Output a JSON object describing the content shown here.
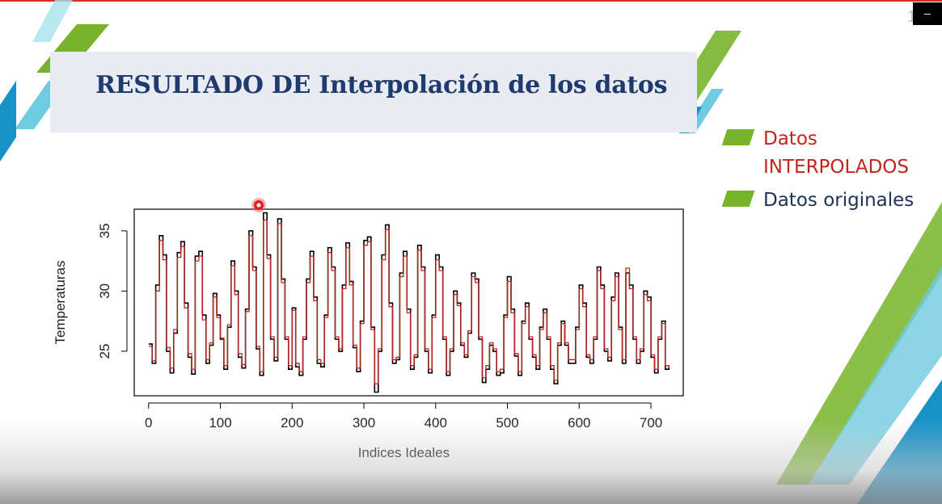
{
  "slide": {
    "title": "RESULTADO DE Interpolación de los datos",
    "page_number": "15",
    "window_button": "–"
  },
  "legend": {
    "items": [
      {
        "label": "Datos INTERPOLADOS",
        "label_line1": "Datos",
        "label_line2": "INTERPOLADOS",
        "color": "#c0261e"
      },
      {
        "label": "Datos originales",
        "color": "#1f3255"
      }
    ],
    "swatch_color": "#78b42a"
  },
  "chart_data": {
    "type": "line",
    "xlabel": "Indices Ideales",
    "ylabel": "Temperaturas",
    "xlim": [
      -20,
      745
    ],
    "ylim": [
      21.3,
      36.8
    ],
    "xticks": [
      0,
      100,
      200,
      300,
      400,
      500,
      600,
      700
    ],
    "yticks": [
      25,
      30,
      35
    ],
    "grid": false,
    "series": [
      {
        "name": "Datos originales",
        "color": "#000000",
        "points": [
          [
            0,
            25.6
          ],
          [
            5,
            24.0
          ],
          [
            10,
            30.5
          ],
          [
            15,
            34.6
          ],
          [
            20,
            33.0
          ],
          [
            25,
            25.0
          ],
          [
            30,
            23.2
          ],
          [
            35,
            26.5
          ],
          [
            40,
            33.2
          ],
          [
            45,
            34.1
          ],
          [
            50,
            29.0
          ],
          [
            55,
            24.5
          ],
          [
            60,
            23.1
          ],
          [
            65,
            32.9
          ],
          [
            70,
            33.3
          ],
          [
            75,
            28.0
          ],
          [
            80,
            24.0
          ],
          [
            85,
            25.5
          ],
          [
            90,
            29.8
          ],
          [
            95,
            28.0
          ],
          [
            100,
            26.0
          ],
          [
            105,
            23.5
          ],
          [
            110,
            27.0
          ],
          [
            115,
            32.5
          ],
          [
            120,
            30.0
          ],
          [
            125,
            24.5
          ],
          [
            130,
            23.6
          ],
          [
            135,
            28.5
          ],
          [
            140,
            35.0
          ],
          [
            145,
            32.0
          ],
          [
            150,
            25.2
          ],
          [
            155,
            23.0
          ],
          [
            160,
            36.5
          ],
          [
            165,
            33.0
          ],
          [
            170,
            26.0
          ],
          [
            175,
            24.2
          ],
          [
            180,
            36.0
          ],
          [
            185,
            31.0
          ],
          [
            190,
            26.0
          ],
          [
            195,
            23.5
          ],
          [
            200,
            28.6
          ],
          [
            205,
            23.7
          ],
          [
            210,
            23.0
          ],
          [
            215,
            26.0
          ],
          [
            220,
            31.0
          ],
          [
            225,
            33.3
          ],
          [
            230,
            29.5
          ],
          [
            235,
            24.0
          ],
          [
            240,
            23.7
          ],
          [
            245,
            28.0
          ],
          [
            250,
            33.6
          ],
          [
            255,
            32.0
          ],
          [
            260,
            26.0
          ],
          [
            265,
            25.0
          ],
          [
            270,
            30.5
          ],
          [
            275,
            34.0
          ],
          [
            280,
            30.8
          ],
          [
            285,
            25.3
          ],
          [
            290,
            23.3
          ],
          [
            295,
            27.5
          ],
          [
            300,
            34.2
          ],
          [
            305,
            34.5
          ],
          [
            310,
            27.0
          ],
          [
            315,
            21.6
          ],
          [
            320,
            25.0
          ],
          [
            325,
            33.0
          ],
          [
            330,
            35.5
          ],
          [
            335,
            29.0
          ],
          [
            340,
            24.0
          ],
          [
            345,
            24.3
          ],
          [
            350,
            31.5
          ],
          [
            355,
            33.3
          ],
          [
            360,
            28.5
          ],
          [
            365,
            23.5
          ],
          [
            370,
            24.5
          ],
          [
            375,
            33.8
          ],
          [
            380,
            32.0
          ],
          [
            385,
            25.0
          ],
          [
            390,
            23.2
          ],
          [
            395,
            28.0
          ],
          [
            400,
            33.0
          ],
          [
            405,
            32.0
          ],
          [
            410,
            26.0
          ],
          [
            415,
            23.0
          ],
          [
            420,
            25.0
          ],
          [
            425,
            30.0
          ],
          [
            430,
            29.0
          ],
          [
            435,
            25.5
          ],
          [
            440,
            24.5
          ],
          [
            445,
            26.5
          ],
          [
            450,
            31.5
          ],
          [
            455,
            31.0
          ],
          [
            460,
            26.0
          ],
          [
            465,
            22.4
          ],
          [
            470,
            23.5
          ],
          [
            475,
            25.5
          ],
          [
            480,
            25.0
          ],
          [
            485,
            23.0
          ],
          [
            490,
            23.2
          ],
          [
            495,
            28.0
          ],
          [
            500,
            31.2
          ],
          [
            505,
            28.5
          ],
          [
            510,
            24.6
          ],
          [
            515,
            23.0
          ],
          [
            520,
            27.5
          ],
          [
            525,
            29.0
          ],
          [
            530,
            26.0
          ],
          [
            535,
            24.5
          ],
          [
            540,
            23.5
          ],
          [
            545,
            27.0
          ],
          [
            550,
            28.5
          ],
          [
            555,
            26.0
          ],
          [
            560,
            23.5
          ],
          [
            565,
            22.3
          ],
          [
            570,
            25.5
          ],
          [
            575,
            27.5
          ],
          [
            580,
            25.5
          ],
          [
            585,
            24.0
          ],
          [
            590,
            24.0
          ],
          [
            595,
            27.0
          ],
          [
            600,
            30.5
          ],
          [
            605,
            29.0
          ],
          [
            610,
            24.5
          ],
          [
            615,
            24.0
          ],
          [
            620,
            26.0
          ],
          [
            625,
            32.0
          ],
          [
            630,
            30.5
          ],
          [
            635,
            25.0
          ],
          [
            640,
            24.2
          ],
          [
            645,
            29.5
          ],
          [
            650,
            31.5
          ],
          [
            655,
            27.0
          ],
          [
            660,
            24.0
          ],
          [
            665,
            31.5
          ],
          [
            670,
            30.5
          ],
          [
            675,
            26.0
          ],
          [
            680,
            24.0
          ],
          [
            685,
            25.0
          ],
          [
            690,
            30.0
          ],
          [
            695,
            29.5
          ],
          [
            700,
            24.5
          ],
          [
            705,
            23.2
          ],
          [
            710,
            26.0
          ],
          [
            715,
            27.5
          ],
          [
            720,
            23.5
          ],
          [
            725,
            23.8
          ]
        ]
      },
      {
        "name": "Datos INTERPOLADOS",
        "color": "#c0261e",
        "points": [
          [
            0,
            25.4
          ],
          [
            5,
            24.2
          ],
          [
            10,
            30.0
          ],
          [
            15,
            34.2
          ],
          [
            20,
            32.6
          ],
          [
            25,
            25.3
          ],
          [
            30,
            23.6
          ],
          [
            35,
            26.8
          ],
          [
            40,
            32.8
          ],
          [
            45,
            33.7
          ],
          [
            50,
            28.6
          ],
          [
            55,
            24.8
          ],
          [
            60,
            23.5
          ],
          [
            65,
            32.5
          ],
          [
            70,
            32.9
          ],
          [
            75,
            27.6
          ],
          [
            80,
            24.3
          ],
          [
            85,
            25.7
          ],
          [
            90,
            29.5
          ],
          [
            95,
            27.8
          ],
          [
            100,
            26.1
          ],
          [
            105,
            23.8
          ],
          [
            110,
            27.2
          ],
          [
            115,
            32.1
          ],
          [
            120,
            29.7
          ],
          [
            125,
            24.8
          ],
          [
            130,
            23.9
          ],
          [
            135,
            28.3
          ],
          [
            140,
            34.6
          ],
          [
            145,
            31.7
          ],
          [
            150,
            25.4
          ],
          [
            155,
            23.3
          ],
          [
            160,
            35.9
          ],
          [
            165,
            32.7
          ],
          [
            170,
            26.2
          ],
          [
            175,
            24.5
          ],
          [
            180,
            35.6
          ],
          [
            185,
            30.7
          ],
          [
            190,
            26.2
          ],
          [
            195,
            23.8
          ],
          [
            200,
            28.4
          ],
          [
            205,
            24.0
          ],
          [
            210,
            23.3
          ],
          [
            215,
            26.2
          ],
          [
            220,
            30.7
          ],
          [
            225,
            32.9
          ],
          [
            230,
            29.2
          ],
          [
            235,
            24.3
          ],
          [
            240,
            24.0
          ],
          [
            245,
            27.8
          ],
          [
            250,
            33.2
          ],
          [
            255,
            31.7
          ],
          [
            260,
            26.2
          ],
          [
            265,
            25.2
          ],
          [
            270,
            30.2
          ],
          [
            275,
            33.6
          ],
          [
            280,
            30.5
          ],
          [
            285,
            25.5
          ],
          [
            290,
            23.6
          ],
          [
            295,
            27.3
          ],
          [
            300,
            33.8
          ],
          [
            305,
            34.1
          ],
          [
            310,
            26.8
          ],
          [
            315,
            22.3
          ],
          [
            320,
            25.2
          ],
          [
            325,
            32.6
          ],
          [
            330,
            35.1
          ],
          [
            335,
            28.7
          ],
          [
            340,
            24.3
          ],
          [
            345,
            24.5
          ],
          [
            350,
            31.2
          ],
          [
            355,
            32.9
          ],
          [
            360,
            28.2
          ],
          [
            365,
            23.8
          ],
          [
            370,
            24.7
          ],
          [
            375,
            33.4
          ],
          [
            380,
            31.7
          ],
          [
            385,
            25.2
          ],
          [
            390,
            23.5
          ],
          [
            395,
            27.8
          ],
          [
            400,
            32.6
          ],
          [
            405,
            31.7
          ],
          [
            410,
            26.2
          ],
          [
            415,
            23.3
          ],
          [
            420,
            25.2
          ],
          [
            425,
            29.7
          ],
          [
            430,
            28.8
          ],
          [
            435,
            25.7
          ],
          [
            440,
            24.7
          ],
          [
            445,
            26.7
          ],
          [
            450,
            31.2
          ],
          [
            455,
            30.7
          ],
          [
            460,
            26.2
          ],
          [
            465,
            22.8
          ],
          [
            470,
            23.8
          ],
          [
            475,
            25.7
          ],
          [
            480,
            25.2
          ],
          [
            485,
            23.3
          ],
          [
            490,
            23.5
          ],
          [
            495,
            27.8
          ],
          [
            500,
            30.8
          ],
          [
            505,
            28.2
          ],
          [
            510,
            24.8
          ],
          [
            515,
            23.3
          ],
          [
            520,
            27.3
          ],
          [
            525,
            28.7
          ],
          [
            530,
            26.2
          ],
          [
            535,
            24.7
          ],
          [
            540,
            23.8
          ],
          [
            545,
            26.8
          ],
          [
            550,
            28.2
          ],
          [
            555,
            26.2
          ],
          [
            560,
            23.8
          ],
          [
            565,
            22.6
          ],
          [
            570,
            25.7
          ],
          [
            575,
            27.3
          ],
          [
            580,
            25.7
          ],
          [
            585,
            24.3
          ],
          [
            590,
            24.3
          ],
          [
            595,
            26.8
          ],
          [
            600,
            30.2
          ],
          [
            605,
            28.7
          ],
          [
            610,
            24.7
          ],
          [
            615,
            24.3
          ],
          [
            620,
            26.2
          ],
          [
            625,
            31.7
          ],
          [
            630,
            30.2
          ],
          [
            635,
            25.2
          ],
          [
            640,
            24.5
          ],
          [
            645,
            29.2
          ],
          [
            650,
            31.2
          ],
          [
            655,
            26.8
          ],
          [
            660,
            24.3
          ],
          [
            665,
            31.9
          ],
          [
            670,
            30.2
          ],
          [
            675,
            26.2
          ],
          [
            680,
            24.3
          ],
          [
            685,
            25.2
          ],
          [
            690,
            29.7
          ],
          [
            695,
            29.2
          ],
          [
            700,
            24.7
          ],
          [
            705,
            23.5
          ],
          [
            710,
            26.2
          ],
          [
            715,
            27.3
          ],
          [
            720,
            23.8
          ],
          [
            725,
            23.6
          ]
        ]
      }
    ]
  }
}
